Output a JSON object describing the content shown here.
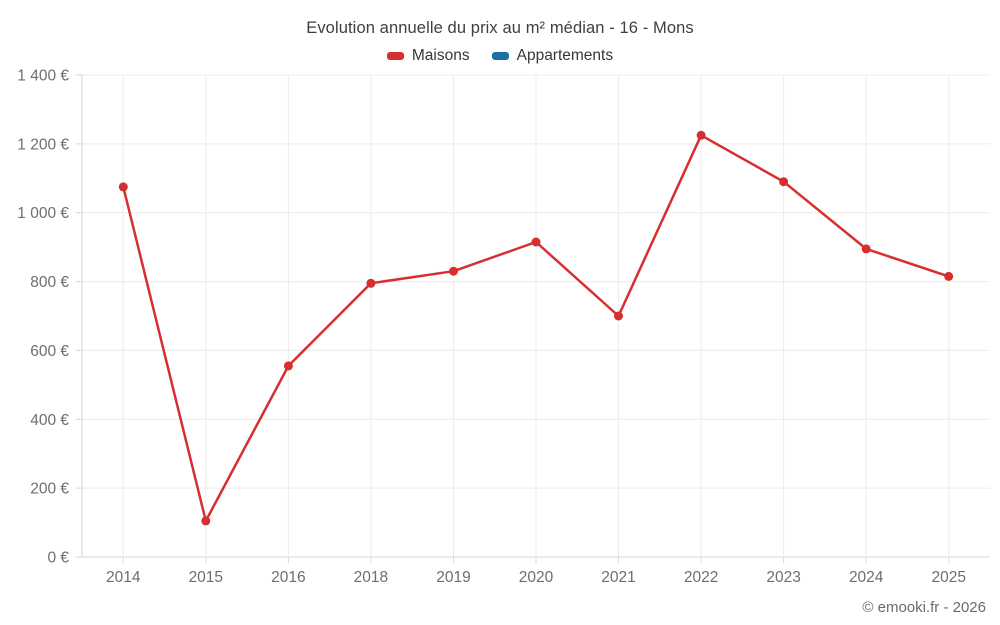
{
  "chart_data": {
    "type": "line",
    "title": "Evolution annuelle du prix au m² médian - 16 - Mons",
    "categories": [
      "2014",
      "2015",
      "2016",
      "2018",
      "2019",
      "2020",
      "2021",
      "2022",
      "2023",
      "2024",
      "2025"
    ],
    "series": [
      {
        "name": "Maisons",
        "color": "#d62f2f",
        "values": [
          1075,
          105,
          555,
          795,
          830,
          915,
          700,
          1225,
          1090,
          895,
          815
        ]
      },
      {
        "name": "Appartements",
        "color": "#1d6fa3",
        "values": []
      }
    ],
    "xlabel": "",
    "ylabel": "",
    "ylim": [
      0,
      1400
    ],
    "ytick_step": 200,
    "ytick_suffix": " €",
    "grid": true,
    "legend_position": "top",
    "marker": "circle",
    "colors": {
      "grid": "#ececec",
      "axis": "#d6d6d6",
      "tick_label": "#6e6e6e"
    }
  },
  "footer": "© emooki.fr - 2026"
}
